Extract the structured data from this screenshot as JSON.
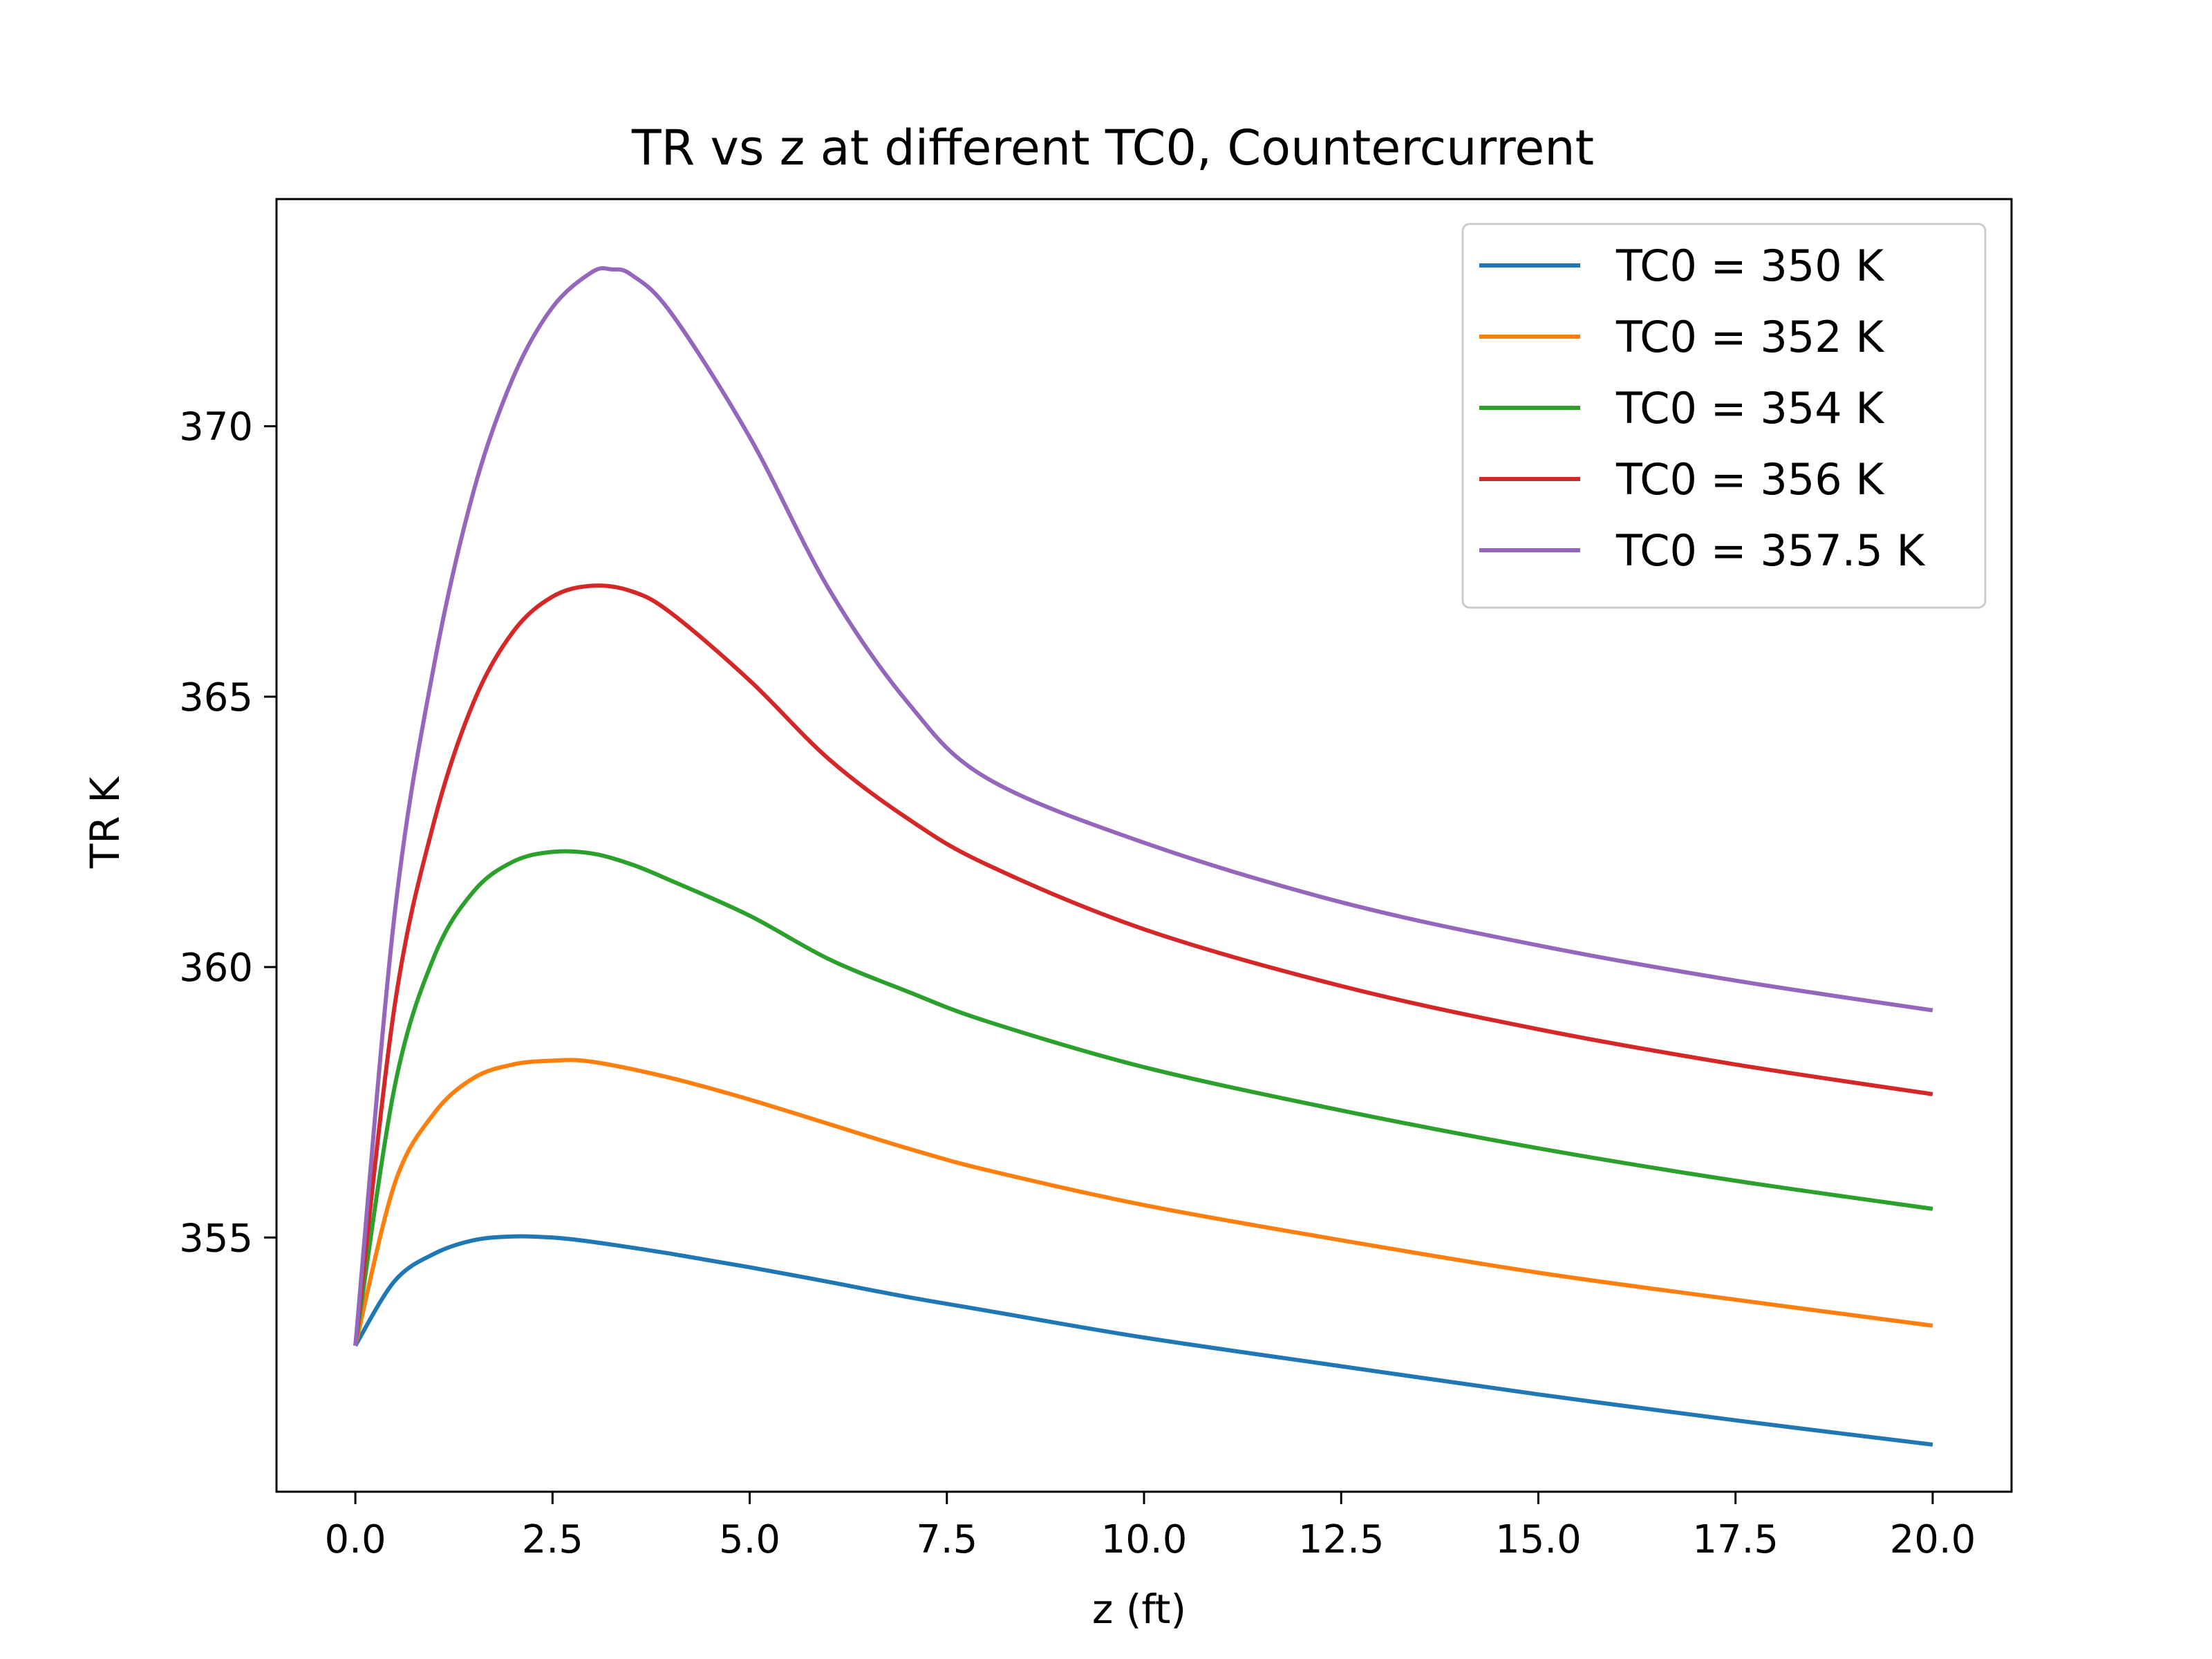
{
  "chart_data": {
    "type": "line",
    "title": "TR vs z at different TC0, Countercurrent",
    "xlabel": "z (ft)",
    "ylabel": "TR K",
    "xlim": [
      -1.0,
      21.0
    ],
    "ylim": [
      350.3,
      374.2
    ],
    "xticks": [
      0.0,
      2.5,
      5.0,
      7.5,
      10.0,
      12.5,
      15.0,
      17.5,
      20.0
    ],
    "xtick_labels": [
      "0.0",
      "2.5",
      "5.0",
      "7.5",
      "10.0",
      "12.5",
      "15.0",
      "17.5",
      "20.0"
    ],
    "yticks": [
      355,
      360,
      365,
      370
    ],
    "ytick_labels": [
      "355",
      "360",
      "365",
      "370"
    ],
    "grid": false,
    "legend_position": "top-right",
    "series": [
      {
        "name": "TC0 = 350 K",
        "color": "#1f77b4",
        "points": [
          [
            0,
            353
          ],
          [
            0.5,
            354.2
          ],
          [
            1,
            354.7
          ],
          [
            1.5,
            354.95
          ],
          [
            2,
            355.02
          ],
          [
            2.5,
            355.0
          ],
          [
            3,
            354.92
          ],
          [
            4,
            354.7
          ],
          [
            5,
            354.45
          ],
          [
            6,
            354.18
          ],
          [
            7,
            353.9
          ],
          [
            8,
            353.65
          ],
          [
            10,
            353.15
          ],
          [
            12.5,
            352.62
          ],
          [
            15,
            352.1
          ],
          [
            17.5,
            351.62
          ],
          [
            20,
            351.17
          ]
        ]
      },
      {
        "name": "TC0 = 352 K",
        "color": "#ff7f0e",
        "points": [
          [
            0,
            353
          ],
          [
            0.5,
            356.0
          ],
          [
            1,
            357.3
          ],
          [
            1.5,
            357.95
          ],
          [
            2,
            358.2
          ],
          [
            2.5,
            358.27
          ],
          [
            3,
            358.25
          ],
          [
            4,
            357.95
          ],
          [
            5,
            357.55
          ],
          [
            6,
            357.1
          ],
          [
            7,
            356.65
          ],
          [
            8,
            356.25
          ],
          [
            10,
            355.6
          ],
          [
            12.5,
            354.95
          ],
          [
            15,
            354.35
          ],
          [
            17.5,
            353.85
          ],
          [
            20,
            353.37
          ]
        ]
      },
      {
        "name": "TC0 = 354 K",
        "color": "#2ca02c",
        "points": [
          [
            0,
            353
          ],
          [
            0.5,
            357.8
          ],
          [
            1,
            360.2
          ],
          [
            1.5,
            361.4
          ],
          [
            2,
            361.95
          ],
          [
            2.5,
            362.13
          ],
          [
            3,
            362.1
          ],
          [
            3.5,
            361.9
          ],
          [
            4,
            361.6
          ],
          [
            5,
            360.95
          ],
          [
            6,
            360.15
          ],
          [
            7,
            359.55
          ],
          [
            8,
            359.0
          ],
          [
            10,
            358.15
          ],
          [
            12.5,
            357.35
          ],
          [
            15,
            356.65
          ],
          [
            17.5,
            356.05
          ],
          [
            20,
            355.53
          ]
        ]
      },
      {
        "name": "TC0 = 356 K",
        "color": "#d62728",
        "points": [
          [
            0,
            353
          ],
          [
            0.5,
            359.3
          ],
          [
            1,
            362.7
          ],
          [
            1.5,
            364.9
          ],
          [
            2,
            366.2
          ],
          [
            2.5,
            366.85
          ],
          [
            3,
            367.05
          ],
          [
            3.5,
            366.95
          ],
          [
            4,
            366.55
          ],
          [
            5,
            365.3
          ],
          [
            6,
            363.85
          ],
          [
            7,
            362.75
          ],
          [
            8,
            361.9
          ],
          [
            10,
            360.7
          ],
          [
            12.5,
            359.65
          ],
          [
            15,
            358.85
          ],
          [
            17.5,
            358.2
          ],
          [
            20,
            357.65
          ]
        ]
      },
      {
        "name": "TC0 = 357.5 K",
        "color": "#9467bd",
        "points": [
          [
            0,
            353
          ],
          [
            0.5,
            361.0
          ],
          [
            1,
            365.6
          ],
          [
            1.5,
            368.8
          ],
          [
            2,
            370.9
          ],
          [
            2.5,
            372.2
          ],
          [
            3,
            372.85
          ],
          [
            3.25,
            372.9
          ],
          [
            3.5,
            372.8
          ],
          [
            4,
            372.1
          ],
          [
            5,
            369.8
          ],
          [
            6,
            367.0
          ],
          [
            7,
            364.9
          ],
          [
            8,
            363.5
          ],
          [
            10,
            362.3
          ],
          [
            12.5,
            361.2
          ],
          [
            15,
            360.4
          ],
          [
            17.5,
            359.75
          ],
          [
            20,
            359.2
          ]
        ]
      }
    ]
  }
}
